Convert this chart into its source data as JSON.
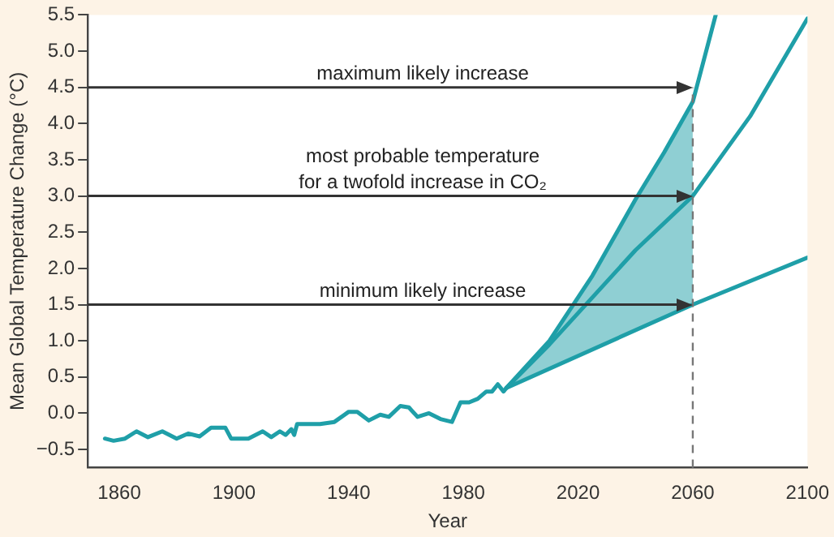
{
  "chart_data": {
    "type": "line",
    "xlabel": "Year",
    "ylabel": "Mean Global Temperature Change (°C)",
    "xlim": [
      1849,
      2100
    ],
    "xticks": [
      1860,
      1900,
      1940,
      1980,
      2020,
      2060,
      2100
    ],
    "ylim": [
      -0.75,
      5.5
    ],
    "yticks": [
      {
        "value": -0.5,
        "label": "−0.5"
      },
      {
        "value": 0,
        "label": "0.0"
      },
      {
        "value": 0.5,
        "label": "0.5"
      },
      {
        "value": 1,
        "label": "1.0"
      },
      {
        "value": 1.5,
        "label": "1.5"
      },
      {
        "value": 2,
        "label": "2.0"
      },
      {
        "value": 2.5,
        "label": "2.5"
      },
      {
        "value": 3,
        "label": "3.0"
      },
      {
        "value": 3.5,
        "label": "3.5"
      },
      {
        "value": 4,
        "label": "4.0"
      },
      {
        "value": 4.5,
        "label": "4.5"
      },
      {
        "value": 5,
        "label": "5.0"
      },
      {
        "value": 5.5,
        "label": "5.5"
      }
    ],
    "grid": false,
    "legend": false,
    "marker": "none",
    "line_style": "solid",
    "series": [
      {
        "color": "#1f9fa8",
        "x": [
          1855,
          1858,
          1862,
          1866,
          1870,
          1875,
          1880,
          1884,
          1888,
          1892,
          1897,
          1899,
          1905,
          1910,
          1913,
          1916,
          1918,
          1920,
          1921,
          1922,
          1930,
          1935,
          1940,
          1943,
          1947,
          1951,
          1954,
          1958,
          1961,
          1964,
          1968,
          1972,
          1976,
          1979,
          1982,
          1985,
          1988,
          1990,
          1992,
          1994,
          1995,
          2010,
          2025,
          2040,
          2060,
          2080,
          2100
        ],
        "values": [
          -0.35,
          -0.38,
          -0.35,
          -0.25,
          -0.33,
          -0.25,
          -0.35,
          -0.28,
          -0.32,
          -0.2,
          -0.2,
          -0.35,
          -0.35,
          -0.25,
          -0.33,
          -0.25,
          -0.3,
          -0.22,
          -0.3,
          -0.15,
          -0.15,
          -0.12,
          0.02,
          0.02,
          -0.1,
          -0.02,
          -0.05,
          0.1,
          0.08,
          -0.05,
          0,
          -0.08,
          -0.12,
          0.15,
          0.15,
          0.2,
          0.3,
          0.3,
          0.4,
          0.3,
          0.35,
          0.95,
          1.6,
          2.25,
          3.0,
          4.1,
          5.45
        ],
        "lower": [
          null,
          null,
          null,
          null,
          null,
          null,
          null,
          null,
          null,
          null,
          null,
          null,
          null,
          null,
          null,
          null,
          null,
          null,
          null,
          null,
          null,
          null,
          null,
          null,
          null,
          null,
          null,
          null,
          null,
          null,
          null,
          null,
          null,
          null,
          null,
          null,
          null,
          null,
          null,
          null,
          0.35,
          0.62,
          0.88,
          1.15,
          1.5,
          null,
          null
        ],
        "upper": [
          null,
          null,
          null,
          null,
          null,
          null,
          null,
          null,
          null,
          null,
          null,
          null,
          null,
          null,
          null,
          null,
          null,
          null,
          null,
          null,
          null,
          null,
          null,
          null,
          null,
          null,
          null,
          null,
          null,
          null,
          null,
          null,
          null,
          null,
          null,
          null,
          null,
          null,
          null,
          null,
          0.35,
          1.0,
          1.9,
          2.95,
          4.3,
          null,
          null
        ]
      },
      {
        "color": "#1f9fa8",
        "x": [
          1995,
          2010,
          2025,
          2040,
          2050,
          2060,
          2068
        ],
        "values": [
          0.35,
          1.0,
          1.9,
          2.95,
          3.6,
          4.3,
          5.5
        ]
      },
      {
        "color": "#1f9fa8",
        "x": [
          1995,
          2060,
          2100
        ],
        "values": [
          0.35,
          1.5,
          2.15
        ]
      }
    ],
    "ref_lines": [
      {
        "axis": "y",
        "value": 4.5,
        "label": "maximum likely increase",
        "color": "#333333"
      },
      {
        "axis": "y",
        "value": 3.0,
        "label": "most probable temperature\nfor a twofold increase in CO₂",
        "color": "#333333"
      },
      {
        "axis": "y",
        "value": 1.5,
        "label": "minimum likely increase",
        "color": "#333333"
      },
      {
        "axis": "x",
        "value": 2060,
        "color": "#777777",
        "line_style": "dashed"
      }
    ]
  }
}
